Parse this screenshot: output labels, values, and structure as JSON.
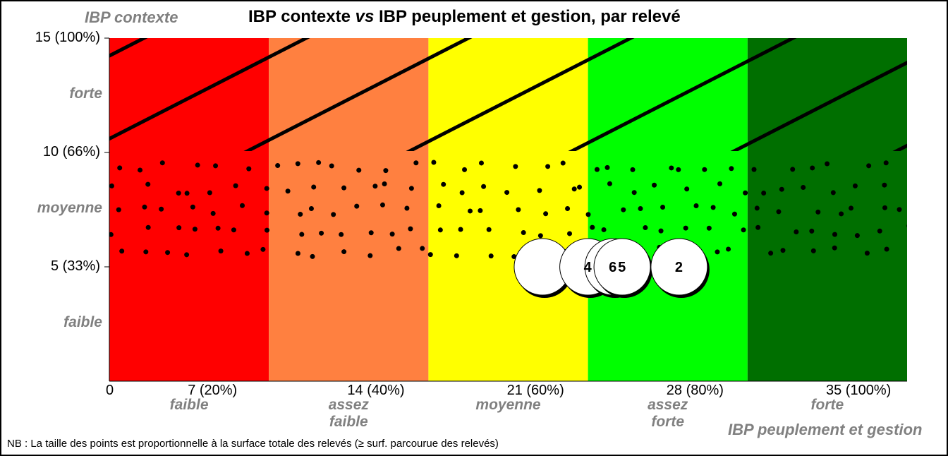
{
  "chart_data": {
    "type": "scatter",
    "title": "IBP contexte vs IBP peuplement et gestion, par relevé",
    "title_parts": [
      "IBP contexte ",
      "vs",
      " IBP peuplement et gestion, par relevé"
    ],
    "ylabel": "IBP contexte",
    "xlabel": "IBP peuplement et gestion",
    "xlim": [
      0,
      35
    ],
    "ylim": [
      0,
      15
    ],
    "x_ticks": [
      {
        "v": 0,
        "label": "0"
      },
      {
        "v": 7,
        "label": "7 (20%)"
      },
      {
        "v": 14,
        "label": "14 (40%)"
      },
      {
        "v": 21,
        "label": "21 (60%)"
      },
      {
        "v": 28,
        "label": "28 (80%)"
      },
      {
        "v": 35,
        "label": "35 (100%)"
      }
    ],
    "y_ticks": [
      {
        "v": 15,
        "label": "15 (100%)"
      },
      {
        "v": 10,
        "label": "10 (66%)"
      },
      {
        "v": 5,
        "label": "5 (33%)"
      }
    ],
    "x_bands": [
      {
        "from": 0,
        "to": 7,
        "color": "#ff0000",
        "label": [
          "faible"
        ]
      },
      {
        "from": 7,
        "to": 14,
        "color": "#ff8040",
        "label": [
          "assez",
          "faible"
        ]
      },
      {
        "from": 14,
        "to": 21,
        "color": "#ffff00",
        "label": [
          "moyenne"
        ]
      },
      {
        "from": 21,
        "to": 28,
        "color": "#00ff00",
        "label": [
          "assez",
          "forte"
        ]
      },
      {
        "from": 28,
        "to": 35,
        "color": "#006f00",
        "label": [
          "forte"
        ]
      }
    ],
    "y_bands": [
      {
        "from": 10,
        "to": 15,
        "pattern": "hatch",
        "label": "forte"
      },
      {
        "from": 5,
        "to": 10,
        "pattern": "dots",
        "label": "moyenne"
      },
      {
        "from": 0,
        "to": 5,
        "pattern": "none",
        "label": "faible"
      }
    ],
    "points": [
      {
        "x": 19,
        "y": 5,
        "label": ""
      },
      {
        "x": 21,
        "y": 5,
        "label": "4"
      },
      {
        "x": 22.1,
        "y": 5,
        "label": "6"
      },
      {
        "x": 22.5,
        "y": 5,
        "label": "5"
      },
      {
        "x": 25,
        "y": 5,
        "label": "2"
      }
    ],
    "note": "NB : La taille des points est proportionnelle  à la surface totale des relevés (≥ surf. parcourue des relevés)"
  }
}
